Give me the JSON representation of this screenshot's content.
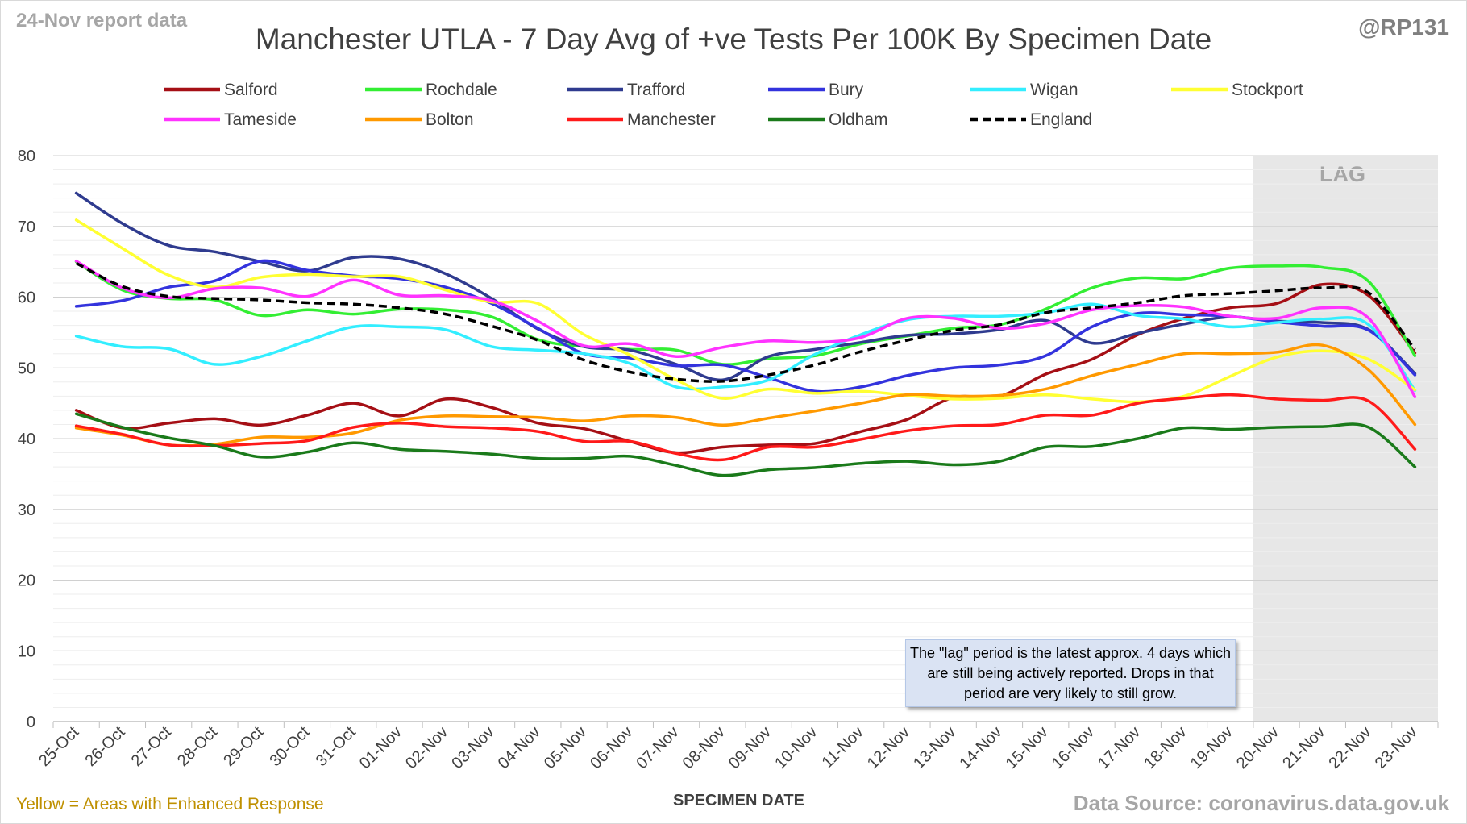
{
  "header": {
    "report_label": "24-Nov report data",
    "handle": "@RP131"
  },
  "footer": {
    "note": "Yellow = Areas with Enhanced Response",
    "source": "Data Source: coronavirus.data.gov.uk"
  },
  "annotation": {
    "text": "The \"lag\" period is the latest approx. 4 days which are still being actively reported.  Drops in that period are very likely to still grow."
  },
  "chart_data": {
    "type": "line",
    "title": "Manchester UTLA - 7 Day Avg of +ve Tests Per 100K By Specimen Date",
    "xlabel": "SPECIMEN DATE",
    "ylabel": "",
    "ylim": [
      0,
      80
    ],
    "y_ticks": [
      0,
      10,
      20,
      30,
      40,
      50,
      60,
      70,
      80
    ],
    "grid": true,
    "legend": "top",
    "lag_region": {
      "label": "LAG",
      "start": "20-Nov",
      "end": "23-Nov"
    },
    "categories": [
      "25-Oct",
      "26-Oct",
      "27-Oct",
      "28-Oct",
      "29-Oct",
      "30-Oct",
      "31-Oct",
      "01-Nov",
      "02-Nov",
      "03-Nov",
      "04-Nov",
      "05-Nov",
      "06-Nov",
      "07-Nov",
      "08-Nov",
      "09-Nov",
      "10-Nov",
      "11-Nov",
      "12-Nov",
      "13-Nov",
      "14-Nov",
      "15-Nov",
      "16-Nov",
      "17-Nov",
      "18-Nov",
      "19-Nov",
      "20-Nov",
      "21-Nov",
      "22-Nov",
      "23-Nov"
    ],
    "series": [
      {
        "name": "Salford",
        "color": "#a50f15",
        "dashed": false,
        "values": [
          44.0,
          41.5,
          42.2,
          42.8,
          41.9,
          43.3,
          45.0,
          43.2,
          45.6,
          44.4,
          42.2,
          41.4,
          39.6,
          38.0,
          38.8,
          39.1,
          39.3,
          41.0,
          42.7,
          45.8,
          46.0,
          49.1,
          51.2,
          54.7,
          57.0,
          58.5,
          59.1,
          61.8,
          60.2,
          52.1
        ]
      },
      {
        "name": "Rochdale",
        "color": "#33ee33",
        "dashed": false,
        "values": [
          65.0,
          61.0,
          59.8,
          59.6,
          57.4,
          58.2,
          57.6,
          58.3,
          58.2,
          57.2,
          54.0,
          53.0,
          52.6,
          52.5,
          50.5,
          51.3,
          51.7,
          53.4,
          54.5,
          55.6,
          56.1,
          58.3,
          61.3,
          62.7,
          62.6,
          64.1,
          64.4,
          64.2,
          62.2,
          51.7
        ]
      },
      {
        "name": "Trafford",
        "color": "#2f3b8f",
        "dashed": false,
        "values": [
          74.7,
          70.4,
          67.3,
          66.4,
          65.0,
          63.7,
          65.6,
          65.4,
          63.3,
          59.8,
          55.5,
          53.0,
          52.5,
          50.5,
          48.3,
          51.6,
          52.6,
          53.6,
          54.6,
          54.8,
          55.4,
          56.7,
          53.5,
          54.9,
          56.2,
          57.2,
          56.6,
          56.4,
          55.4,
          49.2
        ]
      },
      {
        "name": "Bury",
        "color": "#3333dd",
        "dashed": false,
        "values": [
          58.7,
          59.5,
          61.4,
          62.3,
          65.1,
          63.8,
          63.0,
          62.6,
          61.4,
          59.1,
          55.6,
          52.0,
          51.4,
          50.3,
          50.4,
          48.6,
          46.7,
          47.3,
          48.9,
          50.0,
          50.4,
          51.7,
          55.8,
          57.7,
          57.5,
          57.3,
          56.5,
          55.9,
          55.3,
          49.0
        ]
      },
      {
        "name": "Wigan",
        "color": "#33eeff",
        "dashed": false,
        "values": [
          54.5,
          53.0,
          52.7,
          50.5,
          51.6,
          53.8,
          55.8,
          55.8,
          55.4,
          53.0,
          52.5,
          52.0,
          50.6,
          47.3,
          47.3,
          48.3,
          51.9,
          54.7,
          56.8,
          57.3,
          57.3,
          57.8,
          59.0,
          57.4,
          56.9,
          55.8,
          56.4,
          56.9,
          56.1,
          46.8
        ]
      },
      {
        "name": "Stockport",
        "color": "#ffff33",
        "dashed": false,
        "values": [
          70.9,
          66.9,
          63.1,
          61.4,
          62.8,
          63.2,
          62.9,
          62.9,
          61.0,
          59.3,
          59.1,
          54.7,
          51.8,
          48.3,
          45.7,
          47.0,
          46.4,
          46.7,
          46.1,
          45.6,
          45.7,
          46.2,
          45.6,
          45.2,
          46.0,
          48.8,
          51.5,
          52.4,
          51.2,
          46.9
        ]
      },
      {
        "name": "Tameside",
        "color": "#ff33ff",
        "dashed": false,
        "values": [
          65.1,
          61.3,
          59.9,
          61.2,
          61.3,
          60.1,
          62.4,
          60.3,
          60.2,
          59.5,
          56.6,
          53.1,
          53.4,
          51.6,
          52.9,
          53.8,
          53.6,
          54.3,
          57.0,
          57.0,
          55.6,
          56.3,
          58.2,
          58.8,
          58.6,
          57.3,
          57.0,
          58.5,
          57.0,
          45.9
        ]
      },
      {
        "name": "Bolton",
        "color": "#ff9900",
        "dashed": false,
        "values": [
          41.5,
          40.5,
          39.1,
          39.2,
          40.2,
          40.2,
          40.8,
          42.6,
          43.2,
          43.1,
          43.0,
          42.5,
          43.2,
          43.0,
          41.9,
          42.9,
          43.9,
          45.0,
          46.2,
          46.0,
          46.1,
          47.0,
          48.9,
          50.5,
          52.0,
          52.0,
          52.2,
          53.2,
          49.7,
          42.0
        ]
      },
      {
        "name": "Manchester",
        "color": "#ff1a1a",
        "dashed": false,
        "values": [
          41.8,
          40.6,
          39.1,
          39.0,
          39.3,
          39.7,
          41.6,
          42.2,
          41.7,
          41.5,
          41.0,
          39.6,
          39.6,
          37.9,
          37.0,
          38.8,
          38.8,
          39.9,
          41.1,
          41.8,
          42.0,
          43.3,
          43.3,
          45.0,
          45.7,
          46.2,
          45.6,
          45.4,
          45.3,
          38.5
        ]
      },
      {
        "name": "Oldham",
        "color": "#1a7a1a",
        "dashed": false,
        "values": [
          43.5,
          41.6,
          40.1,
          39.0,
          37.4,
          38.1,
          39.4,
          38.5,
          38.2,
          37.8,
          37.2,
          37.2,
          37.5,
          36.2,
          34.8,
          35.6,
          35.9,
          36.5,
          36.8,
          36.3,
          36.8,
          38.8,
          38.9,
          40.0,
          41.5,
          41.3,
          41.6,
          41.7,
          41.6,
          36.0
        ]
      },
      {
        "name": "England",
        "color": "#000000",
        "dashed": true,
        "values": [
          64.8,
          61.5,
          60.1,
          59.8,
          59.6,
          59.2,
          59.0,
          58.5,
          57.6,
          55.9,
          53.9,
          51.1,
          49.4,
          48.4,
          48.1,
          49.0,
          50.4,
          52.3,
          53.9,
          55.3,
          56.1,
          57.8,
          58.5,
          59.2,
          60.2,
          60.5,
          60.9,
          61.3,
          60.6,
          52.6
        ]
      }
    ]
  }
}
